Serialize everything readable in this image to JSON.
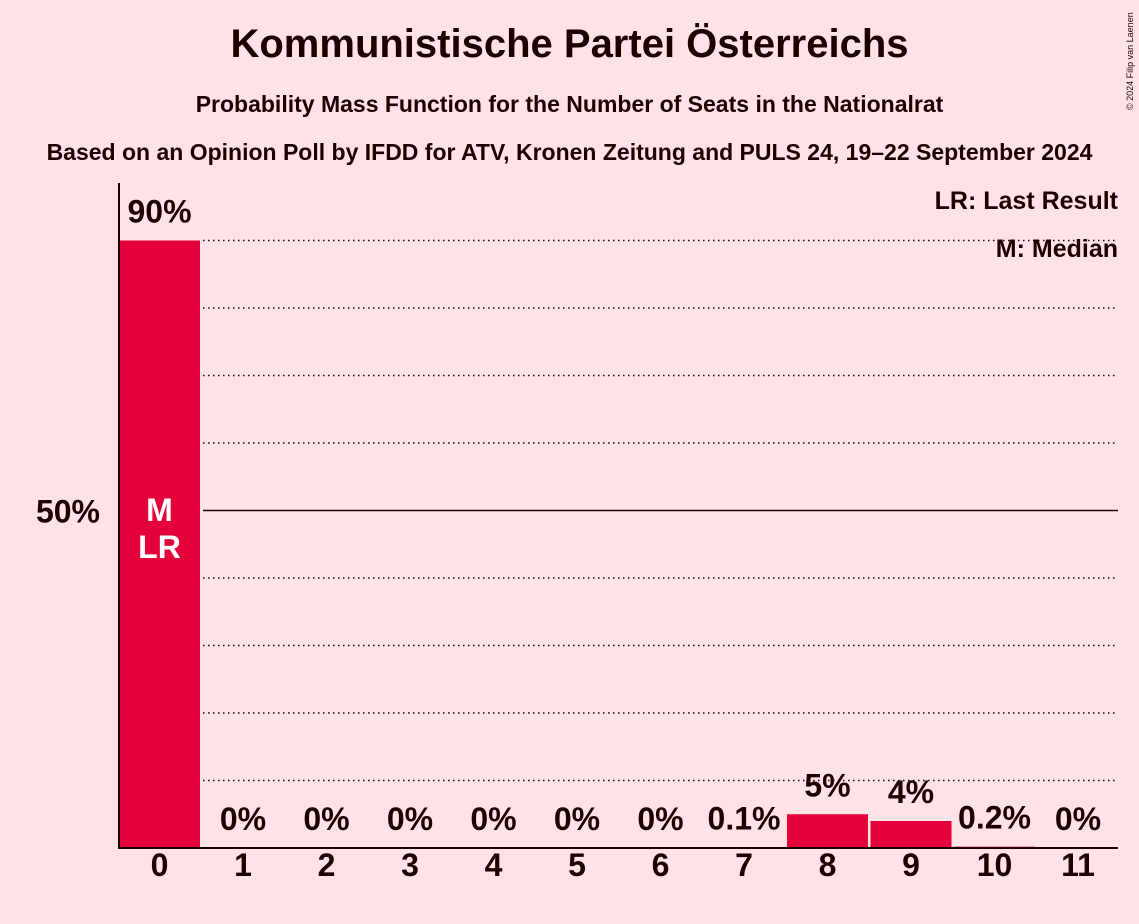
{
  "chart_data": {
    "type": "bar",
    "title": "Kommunistische Partei Österreichs",
    "subtitle": "Probability Mass Function for the Number of Seats in the Nationalrat",
    "source": "Based on an Opinion Poll by IFDD for ATV, Kronen Zeitung and PULS 24, 19–22 September 2024",
    "copyright": "© 2024 Filip van Laenen",
    "categories": [
      "0",
      "1",
      "2",
      "3",
      "4",
      "5",
      "6",
      "7",
      "8",
      "9",
      "10",
      "11"
    ],
    "values": [
      90,
      0,
      0,
      0,
      0,
      0,
      0,
      0.1,
      5,
      4,
      0.2,
      0
    ],
    "value_labels": [
      "90%",
      "0%",
      "0%",
      "0%",
      "0%",
      "0%",
      "0%",
      "0.1%",
      "5%",
      "4%",
      "0.2%",
      "0%"
    ],
    "ylim": [
      0,
      100
    ],
    "y_tick_label": "50%",
    "y_tick_value": 50,
    "bar_annotations": [
      {
        "category": "0",
        "lines": [
          "M",
          "LR"
        ]
      }
    ],
    "legend": [
      "LR: Last Result",
      "M: Median"
    ],
    "legend_position": "top-right",
    "bar_color": "#E4003A",
    "grid": true
  }
}
